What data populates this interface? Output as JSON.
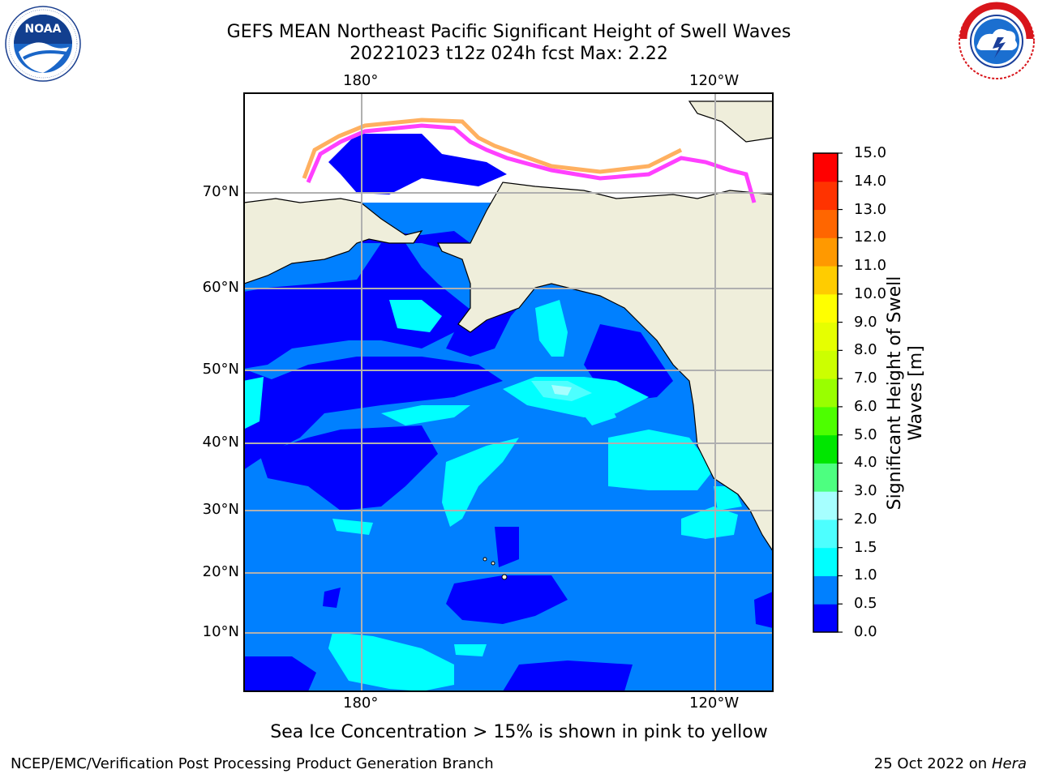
{
  "header": {
    "title_line1": "GEFS MEAN Northeast Pacific Significant Height of Swell Waves",
    "title_line2": "20221023 t12z 024h fcst   Max: 2.22"
  },
  "logos": {
    "left": {
      "name": "noaa-logo",
      "text": "NOAA",
      "ring_text": "NATIONAL OCEANIC AND ATMOSPHERIC ADMINISTRATION · U.S. DEPARTMENT OF COMMERCE"
    },
    "right": {
      "name": "nws-logo",
      "ring_text": "NATIONAL WEATHER SERVICE"
    }
  },
  "map": {
    "lon_labels_top": [
      "180°",
      "120°W"
    ],
    "lon_labels_bottom": [
      "180°",
      "120°W"
    ],
    "lat_labels": [
      "70°N",
      "60°N",
      "50°N",
      "40°N",
      "30°N",
      "20°N",
      "10°N"
    ],
    "colors": {
      "land": "#efeedb",
      "grid": "#b0b0b0",
      "ice_pink": "#ff40ff",
      "ice_orange": "#ffb060",
      "ice_white": "#ffffff"
    }
  },
  "colorbar": {
    "title_line1": "Significant Height of Swell",
    "title_line2": "Waves [m]",
    "ticks": [
      "0.0",
      "0.5",
      "1.0",
      "1.5",
      "2.0",
      "3.0",
      "4.0",
      "5.0",
      "6.0",
      "7.0",
      "8.0",
      "9.0",
      "10.0",
      "11.0",
      "12.0",
      "13.0",
      "14.0",
      "15.0"
    ],
    "colors": [
      "#0000ff",
      "#0080ff",
      "#00ffff",
      "#4dffff",
      "#a6ffff",
      "#4dff80",
      "#00e600",
      "#4dff00",
      "#99ff00",
      "#ccff00",
      "#e6ff00",
      "#ffff00",
      "#ffcc00",
      "#ff9900",
      "#ff6600",
      "#ff3300",
      "#ff0000"
    ]
  },
  "caption": "Sea Ice Concentration > 15% is shown in pink to yellow",
  "footer": {
    "left": "NCEP/EMC/Verification Post Processing Product Generation Branch",
    "right_prefix": "25 Oct 2022 on ",
    "right_host": "Hera"
  }
}
